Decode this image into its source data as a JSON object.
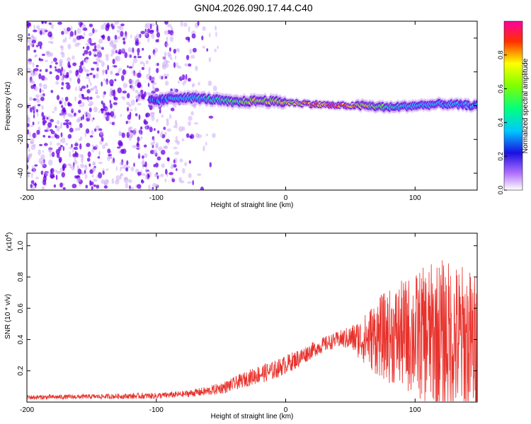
{
  "title": "GN04.2026.090.17.44.C40",
  "colors": {
    "line": "#e8312b",
    "purple_dark": "#6a00e6",
    "purple_light": "#c9a6f5",
    "axis": "#000000"
  },
  "chart_data": [
    {
      "type": "heatmap",
      "name": "spectrogram",
      "xlabel": "Height of straight line (km)",
      "ylabel": "Frequency (Hz)",
      "xlim": [
        -200,
        148
      ],
      "ylim": [
        -50,
        50
      ],
      "xticks": [
        -200,
        -100,
        0,
        100
      ],
      "yticks": [
        -40,
        -20,
        0,
        20,
        40
      ],
      "xtick_labels": [
        "-200",
        "-100",
        "0",
        "100"
      ],
      "ytick_labels": [
        "-40",
        "-20",
        "0",
        "20",
        "40"
      ],
      "colorbar": {
        "label": "Normalized spectral amplitude",
        "range": [
          0,
          1
        ],
        "ticks": [
          0,
          0.2,
          0.4,
          0.6,
          0.8
        ],
        "tick_labels": [
          "0.0",
          "0.2",
          "0.4",
          "0.6",
          "0.8"
        ]
      },
      "ridge": {
        "x": [
          -100,
          -80,
          -60,
          -40,
          -20,
          0,
          20,
          40,
          60,
          80,
          100,
          120,
          148
        ],
        "frequency": [
          3,
          5,
          4,
          2,
          3,
          2,
          1,
          0,
          0,
          -1,
          0,
          1,
          0
        ],
        "amplitude": [
          0.25,
          0.35,
          0.4,
          0.55,
          0.75,
          0.7,
          0.85,
          0.95,
          0.7,
          0.45,
          0.35,
          0.3,
          0.3
        ]
      }
    },
    {
      "type": "line",
      "name": "snr",
      "xlabel": "Height of straight line (km)",
      "ylabel": "SNR (10 * v/v)",
      "multiplier_label": "(x10",
      "multiplier_exp": "4",
      "xlim": [
        -200,
        148
      ],
      "ylim": [
        0,
        1.08
      ],
      "xticks": [
        -200,
        -100,
        0,
        100
      ],
      "yticks": [
        0.2,
        0.4,
        0.6,
        0.8,
        1.0
      ],
      "xtick_labels": [
        "-200",
        "-100",
        "0",
        "100"
      ],
      "ytick_labels": [
        "0.2",
        "0.4",
        "0.6",
        "0.8",
        "1.0"
      ],
      "envelope": {
        "x": [
          -200,
          -150,
          -100,
          -80,
          -60,
          -45,
          -30,
          -20,
          -10,
          0,
          10,
          20,
          30,
          40,
          50,
          60,
          70,
          80,
          90,
          100,
          110,
          120,
          130,
          140,
          148
        ],
        "mean": [
          0.03,
          0.035,
          0.04,
          0.05,
          0.07,
          0.1,
          0.15,
          0.18,
          0.2,
          0.24,
          0.28,
          0.33,
          0.37,
          0.4,
          0.41,
          0.4,
          0.42,
          0.42,
          0.43,
          0.43,
          0.43,
          0.42,
          0.4,
          0.38,
          0.36
        ],
        "spread": [
          0.015,
          0.015,
          0.02,
          0.02,
          0.03,
          0.04,
          0.05,
          0.06,
          0.06,
          0.06,
          0.06,
          0.05,
          0.05,
          0.05,
          0.08,
          0.15,
          0.25,
          0.3,
          0.35,
          0.4,
          0.45,
          0.5,
          0.5,
          0.5,
          0.45
        ]
      }
    }
  ]
}
